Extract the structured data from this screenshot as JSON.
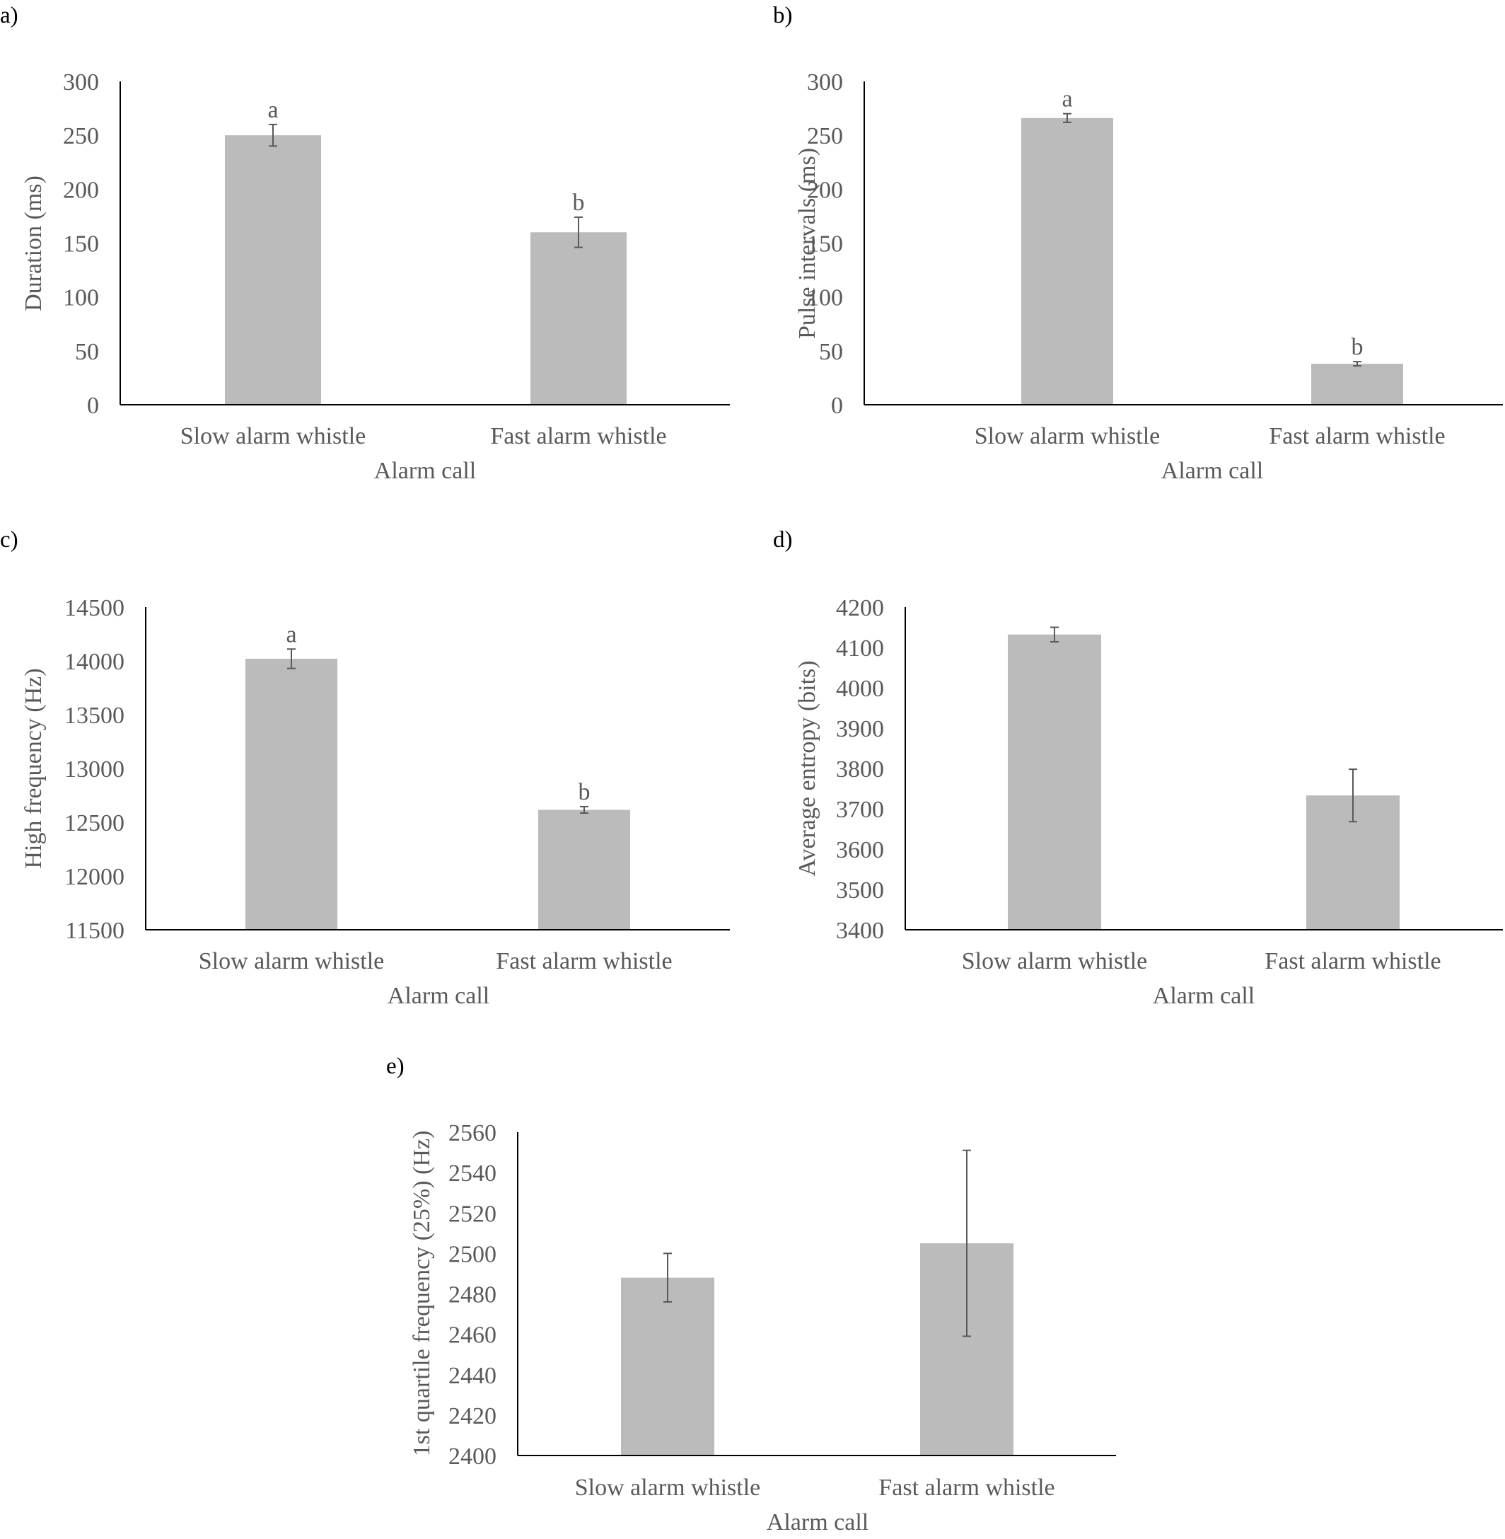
{
  "chart_data": [
    {
      "panel": "a)",
      "type": "bar",
      "categories": [
        "Slow alarm whistle",
        "Fast alarm whistle"
      ],
      "values": [
        250,
        160
      ],
      "errors": [
        10,
        14
      ],
      "significance": [
        "a",
        "b"
      ],
      "ylabel": "Duration (ms)",
      "xlabel": "Alarm call",
      "ylim": [
        0,
        300
      ],
      "yticks": [
        0,
        50,
        100,
        150,
        200,
        250,
        300
      ],
      "bar_color": "#bbbbbb"
    },
    {
      "panel": "b)",
      "type": "bar",
      "categories": [
        "Slow alarm whistle",
        "Fast alarm whistle"
      ],
      "values": [
        266,
        38
      ],
      "errors": [
        4,
        2
      ],
      "significance": [
        "a",
        "b"
      ],
      "ylabel": "Pulse intervals (ms)",
      "xlabel": "Alarm call",
      "ylim": [
        0,
        300
      ],
      "yticks": [
        0,
        50,
        100,
        150,
        200,
        250,
        300
      ],
      "bar_color": "#bbbbbb"
    },
    {
      "panel": "c)",
      "type": "bar",
      "categories": [
        "Slow alarm whistle",
        "Fast alarm whistle"
      ],
      "values": [
        14020,
        12615
      ],
      "errors": [
        90,
        30
      ],
      "significance": [
        "a",
        "b"
      ],
      "ylabel": "High frequency (Hz)",
      "xlabel": "Alarm call",
      "ylim": [
        11500,
        14500
      ],
      "yticks": [
        11500,
        12000,
        12500,
        13000,
        13500,
        14000,
        14500
      ],
      "bar_color": "#bbbbbb"
    },
    {
      "panel": "d)",
      "type": "bar",
      "categories": [
        "Slow alarm whistle",
        "Fast alarm whistle"
      ],
      "values": [
        4132,
        3733
      ],
      "errors": [
        18,
        65
      ],
      "significance": [
        "",
        ""
      ],
      "ylabel": "Average entropy (bits)",
      "xlabel": "Alarm call",
      "ylim": [
        3400,
        4200
      ],
      "yticks": [
        3400,
        3500,
        3600,
        3700,
        3800,
        3900,
        4000,
        4100,
        4200
      ],
      "bar_color": "#bbbbbb"
    },
    {
      "panel": "e)",
      "type": "bar",
      "categories": [
        "Slow alarm whistle",
        "Fast alarm whistle"
      ],
      "values": [
        2488,
        2505
      ],
      "errors": [
        12,
        46
      ],
      "significance": [
        "",
        ""
      ],
      "ylabel": "1st quartile frequency (25%) (Hz)",
      "xlabel": "Alarm call",
      "ylim": [
        2400,
        2560
      ],
      "yticks": [
        2400,
        2420,
        2440,
        2460,
        2480,
        2500,
        2520,
        2540,
        2560
      ],
      "bar_color": "#bbbbbb"
    }
  ]
}
